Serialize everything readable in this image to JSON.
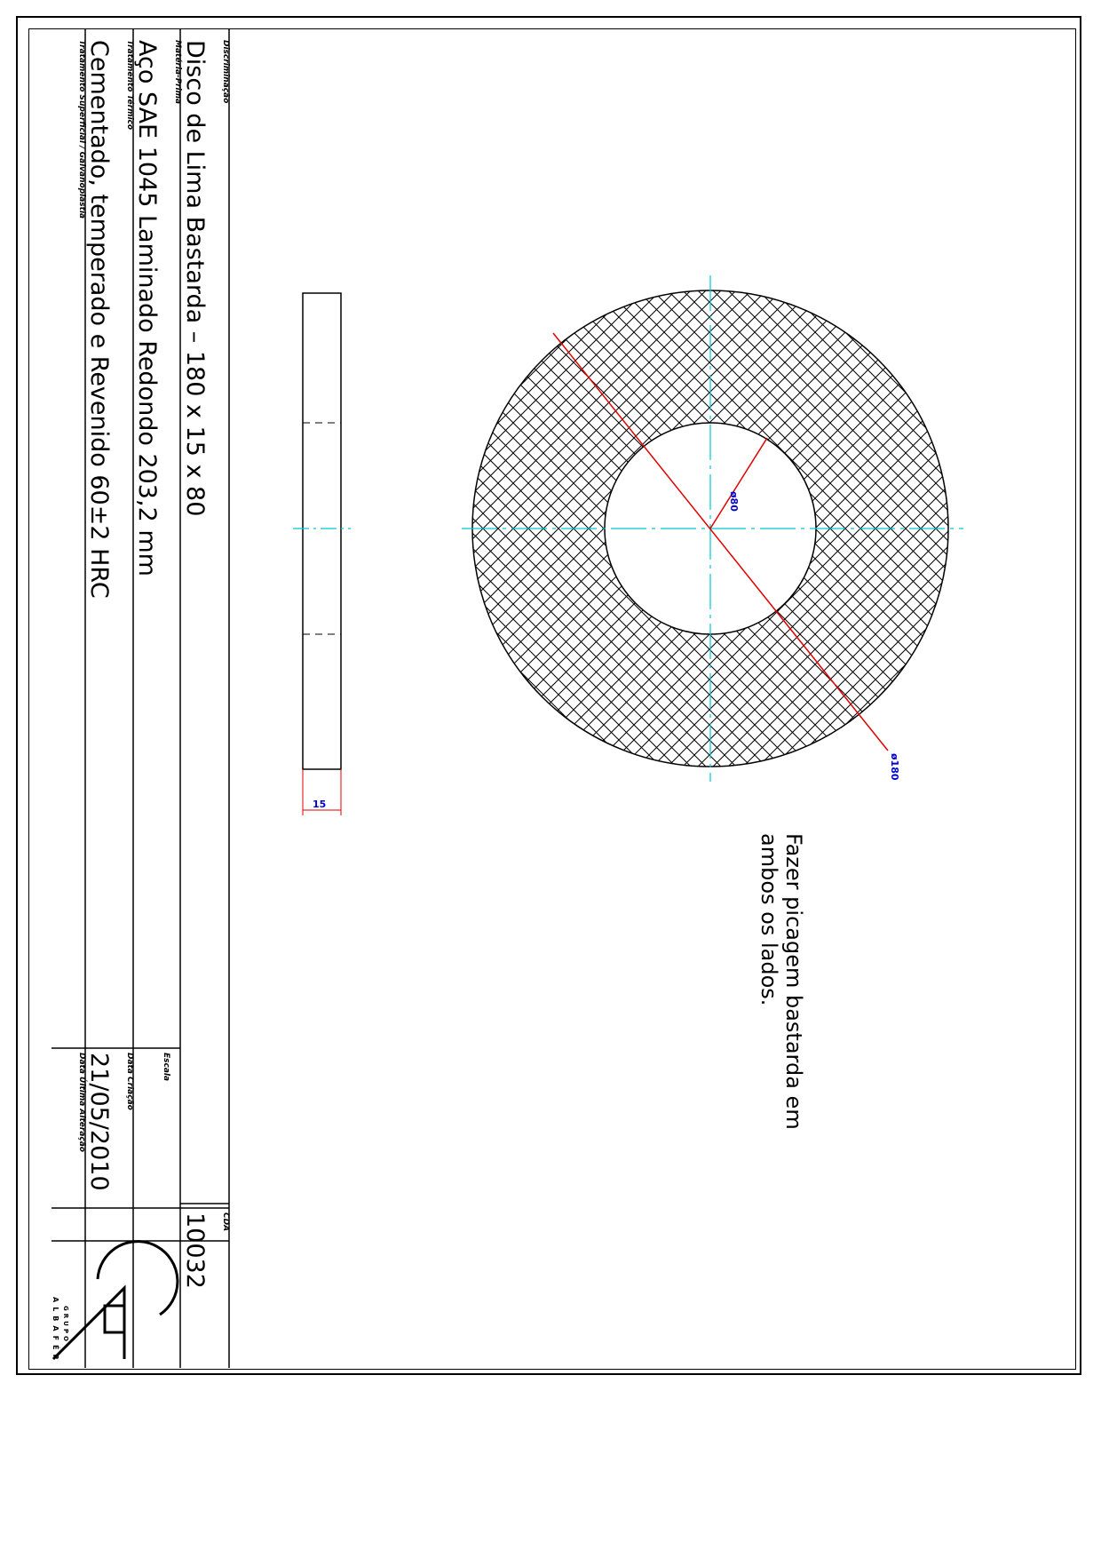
{
  "title_block": {
    "description_caption": "Discriminação",
    "description": "Disco de Lima Bastarda – 180 x 15 x 80",
    "material_caption": "Matéria-Prima",
    "material": "Aço SAE 1045 Laminado Redondo 203,2 mm",
    "heat_treatment_caption": "Tratamento Térmico",
    "heat_treatment": "Cementado, temperado e Revenido 60±2 HRC",
    "surface_treatment_caption": "Tratamento Superficial / Galvanoplastia",
    "surface_treatment": "",
    "code_caption": "CDA",
    "code": "10032",
    "scale_caption": "Escala",
    "scale": "",
    "created_caption": "Data Criação",
    "created": "21/05/2010",
    "modified_caption": "Data Última Alteração",
    "modified": "",
    "logo_text_top": "GRUPO",
    "logo_text_bottom": "ALBAFÉR"
  },
  "drawing": {
    "note": [
      "Fazer picagem bastarda em",
      "ambos os lados."
    ],
    "dim_outer": "ø180",
    "dim_inner": "ø80",
    "dim_thickness": "15"
  },
  "colors": {
    "centerline": "#00c8d8",
    "dimension_line": "#e00000",
    "dimension_text": "#0000cc",
    "outline": "#000000"
  }
}
